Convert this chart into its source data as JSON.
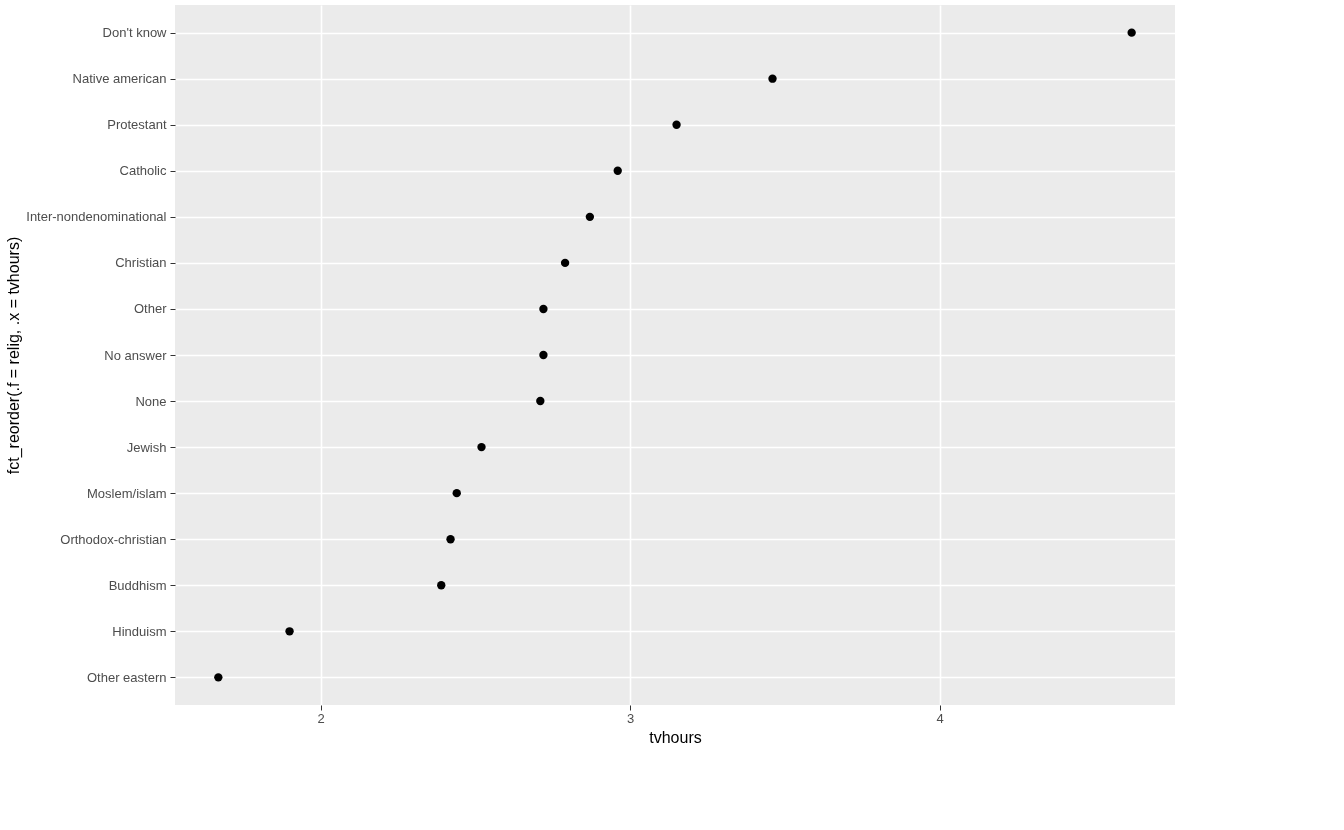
{
  "chart_data": {
    "type": "scatter",
    "xlabel": "tvhours",
    "ylabel": "fct_reorder(.f = relig, .x = tvhours)",
    "categories": [
      "Don't know",
      "Native american",
      "Protestant",
      "Catholic",
      "Inter-nondenominational",
      "Christian",
      "Other",
      "No answer",
      "None",
      "Jewish",
      "Moslem/islam",
      "Orthodox-christian",
      "Buddhism",
      "Hinduism",
      "Other eastern"
    ],
    "series": [
      {
        "color": "#000000",
        "values": [
          4.62,
          3.46,
          3.15,
          2.96,
          2.87,
          2.79,
          2.72,
          2.72,
          2.71,
          2.52,
          2.44,
          2.42,
          2.39,
          1.9,
          1.67
        ]
      }
    ],
    "orientation": "horizontal",
    "xlim": [
      1.53,
      4.76
    ],
    "xticks": [
      2,
      3,
      4
    ],
    "grid": true,
    "marker": "circle"
  }
}
